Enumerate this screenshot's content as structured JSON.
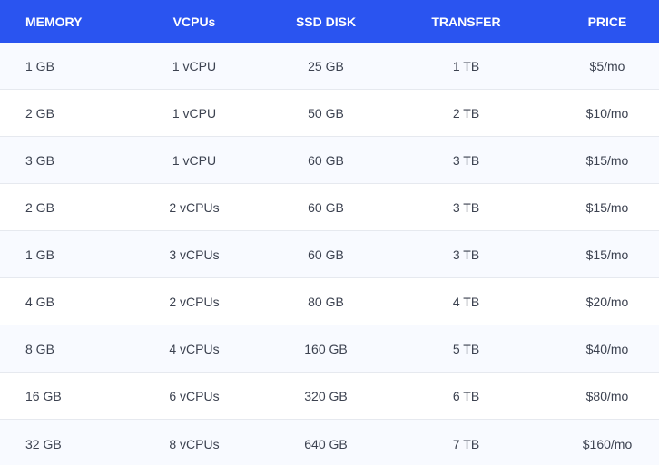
{
  "table": {
    "headers": [
      "MEMORY",
      "VCPUs",
      "SSD DISK",
      "TRANSFER",
      "PRICE"
    ],
    "rows": [
      [
        "1 GB",
        "1 vCPU",
        "25 GB",
        "1 TB",
        "$5/mo"
      ],
      [
        "2 GB",
        "1 vCPU",
        "50 GB",
        "2 TB",
        "$10/mo"
      ],
      [
        "3 GB",
        "1 vCPU",
        "60 GB",
        "3 TB",
        "$15/mo"
      ],
      [
        "2 GB",
        "2 vCPUs",
        "60 GB",
        "3 TB",
        "$15/mo"
      ],
      [
        "1 GB",
        "3 vCPUs",
        "60 GB",
        "3 TB",
        "$15/mo"
      ],
      [
        "4 GB",
        "2 vCPUs",
        "80 GB",
        "4 TB",
        "$20/mo"
      ],
      [
        "8 GB",
        "4 vCPUs",
        "160 GB",
        "5 TB",
        "$40/mo"
      ],
      [
        "16 GB",
        "6 vCPUs",
        "320 GB",
        "6 TB",
        "$80/mo"
      ],
      [
        "32 GB",
        "8 vCPUs",
        "640 GB",
        "7 TB",
        "$160/mo"
      ]
    ]
  },
  "colors": {
    "header_bg": "#2a54f0",
    "header_text": "#ffffff",
    "row_alt_bg": "#f8faff",
    "cell_text": "#3c4250",
    "divider": "#e6e9ef"
  }
}
